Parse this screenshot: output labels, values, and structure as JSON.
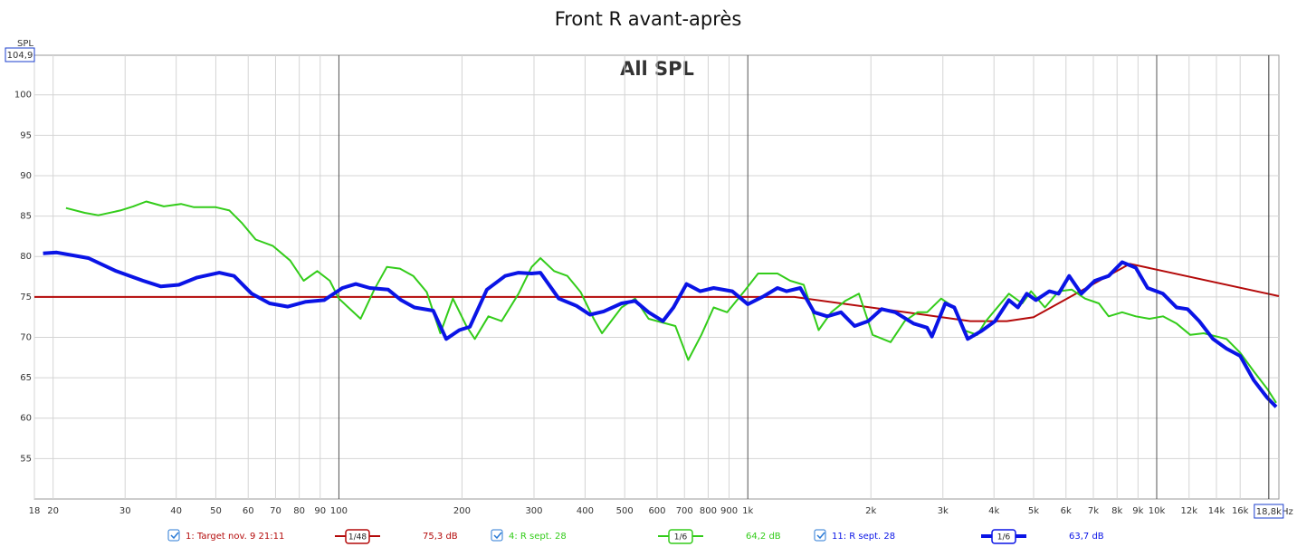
{
  "chart_data": {
    "type": "line",
    "title": "Front R avant-après",
    "heading": "All SPL",
    "ylabel": "SPL",
    "xunit": "Hz",
    "xscale": "log",
    "grid": true,
    "xlim": [
      18,
      19900
    ],
    "ylim": [
      50,
      104.9
    ],
    "xticks": [
      18,
      20,
      30,
      40,
      50,
      60,
      70,
      80,
      90,
      100,
      200,
      300,
      400,
      500,
      600,
      700,
      800,
      900,
      {
        "value": 1000,
        "label": "1k"
      },
      {
        "value": 2000,
        "label": "2k"
      },
      {
        "value": 3000,
        "label": "3k"
      },
      {
        "value": 4000,
        "label": "4k"
      },
      {
        "value": 5000,
        "label": "5k"
      },
      {
        "value": 6000,
        "label": "6k"
      },
      {
        "value": 7000,
        "label": "7k"
      },
      {
        "value": 8000,
        "label": "8k"
      },
      {
        "value": 9000,
        "label": "9k"
      },
      {
        "value": 10000,
        "label": "10k"
      },
      {
        "value": 12000,
        "label": "12k"
      },
      {
        "value": 14000,
        "label": "14k"
      },
      {
        "value": 16000,
        "label": "16k"
      }
    ],
    "yticks": [
      55,
      60,
      65,
      70,
      75,
      80,
      85,
      90,
      95,
      100
    ],
    "x_readout": {
      "value": 18800,
      "label": "18,8k"
    },
    "y_readout": {
      "value": 104.9,
      "label": "104,9"
    },
    "series": [
      {
        "name": "1: Target nov. 9 21:11",
        "color": "#b40a0a",
        "width": 2,
        "smoothing": "1/48",
        "level": "75,3 dB",
        "x": [
          18,
          1300,
          3500,
          4300,
          5000,
          8600,
          19900
        ],
        "values": [
          75,
          75,
          72,
          72,
          72.5,
          79.1,
          75.1
        ]
      },
      {
        "name": "4: R sept. 28",
        "color": "#33cc1a",
        "width": 2,
        "smoothing": "1/6",
        "level": "64,2 dB",
        "x": [
          21.5,
          23.9,
          25.8,
          29.2,
          31.4,
          33.8,
          37.3,
          41.1,
          44.2,
          50,
          54,
          58,
          62.6,
          69,
          76,
          82,
          88.5,
          95,
          100,
          113,
          122,
          131,
          141,
          152,
          164,
          177,
          190,
          205,
          215,
          232,
          250,
          275,
          296,
          311,
          336,
          362,
          390,
          420,
          440,
          491,
          530,
          572,
          665,
          715,
          770,
          825,
          890,
          980,
          1060,
          1182,
          1270,
          1370,
          1490,
          1600,
          1730,
          1870,
          2020,
          2235,
          2420,
          2600,
          2745,
          2970,
          3200,
          3370,
          3640,
          3820,
          4350,
          4690,
          4930,
          5330,
          5755,
          6200,
          6680,
          7220,
          7630,
          8230,
          8890,
          9600,
          10360,
          11190,
          12080,
          13030,
          14820,
          16000,
          17270,
          18650,
          19600
        ],
        "values": [
          86.0,
          85.4,
          85.1,
          85.7,
          86.2,
          86.8,
          86.2,
          86.5,
          86.1,
          86.1,
          85.7,
          84.1,
          82.1,
          81.3,
          79.5,
          77.0,
          78.2,
          77.0,
          74.8,
          72.3,
          75.9,
          78.7,
          78.5,
          77.6,
          75.6,
          70.5,
          74.8,
          71.4,
          69.8,
          72.6,
          72.0,
          75.4,
          78.7,
          79.8,
          78.2,
          77.6,
          75.6,
          72.3,
          70.5,
          73.7,
          74.8,
          72.3,
          71.4,
          67.2,
          70.3,
          73.7,
          73.1,
          75.7,
          77.9,
          77.9,
          77.0,
          76.5,
          70.9,
          73.1,
          74.5,
          75.4,
          70.3,
          69.4,
          72.0,
          73.1,
          73.1,
          74.8,
          73.7,
          70.9,
          70.3,
          72.0,
          75.4,
          74.2,
          75.7,
          73.7,
          75.7,
          75.9,
          74.8,
          74.2,
          72.6,
          73.1,
          72.6,
          72.3,
          72.6,
          71.7,
          70.3,
          70.5,
          69.8,
          68.1,
          65.8,
          63.6,
          61.9
        ]
      },
      {
        "name": "11: R sept. 28",
        "color": "#0a14e6",
        "width": 4,
        "smoothing": "1/6",
        "level": "63,7 dB",
        "x": [
          18.9,
          20.4,
          24.4,
          28.5,
          33.2,
          36.7,
          40.6,
          45,
          51,
          55.4,
          61.2,
          67.7,
          75,
          83,
          92,
          102,
          110,
          119,
          132,
          142,
          153,
          170,
          183,
          197,
          209,
          230,
          255,
          275,
          296,
          311,
          345,
          381,
          411,
          444,
          491,
          530,
          572,
          620,
          658,
          708,
          765,
          825,
          916,
          1000,
          1095,
          1182,
          1244,
          1344,
          1453,
          1564,
          1690,
          1825,
          1970,
          2125,
          2295,
          2545,
          2745,
          2820,
          3040,
          3200,
          3450,
          3730,
          4025,
          4350,
          4575,
          4810,
          5065,
          5465,
          5755,
          6110,
          6540,
          7060,
          7630,
          8230,
          8890,
          9500,
          10360,
          11190,
          11900,
          12710,
          13730,
          14820,
          16000,
          17270,
          18650,
          19600
        ],
        "values": [
          80.4,
          80.5,
          79.8,
          78.2,
          77.0,
          76.3,
          76.5,
          77.4,
          78.0,
          77.6,
          75.4,
          74.2,
          73.8,
          74.4,
          74.6,
          76.1,
          76.6,
          76.1,
          75.9,
          74.6,
          73.7,
          73.3,
          69.8,
          70.9,
          71.3,
          75.9,
          77.6,
          78.0,
          77.9,
          78.0,
          74.8,
          73.9,
          72.8,
          73.2,
          74.2,
          74.5,
          73.1,
          72.0,
          73.7,
          76.6,
          75.7,
          76.1,
          75.7,
          74.1,
          75.1,
          76.1,
          75.7,
          76.1,
          73.1,
          72.6,
          73.1,
          71.4,
          72.0,
          73.5,
          73.1,
          71.7,
          71.2,
          70.1,
          74.2,
          73.7,
          69.8,
          70.8,
          72.0,
          74.6,
          73.7,
          75.4,
          74.6,
          75.7,
          75.4,
          77.6,
          75.4,
          77.0,
          77.6,
          79.3,
          78.6,
          76.1,
          75.4,
          73.7,
          73.5,
          72.0,
          69.8,
          68.6,
          67.7,
          64.7,
          62.5,
          61.4
        ]
      }
    ]
  }
}
